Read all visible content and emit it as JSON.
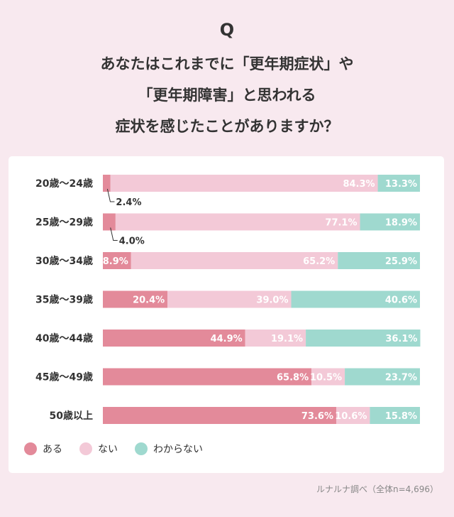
{
  "header": {
    "q_mark": "Q",
    "title_lines": [
      "あなたはこれまでに「更年期症状」や",
      "「更年期障害」と思われる",
      "症状を感じたことがありますか？"
    ]
  },
  "chart_data": {
    "type": "bar",
    "orientation": "horizontal",
    "stacked": true,
    "normalized": true,
    "categories": [
      "20歳〜24歳",
      "25歳〜29歳",
      "30歳〜34歳",
      "35歳〜39歳",
      "40歳〜44歳",
      "45歳〜49歳",
      "50歳以上"
    ],
    "series": [
      {
        "name": "ある",
        "color": "#e38a9a",
        "values": [
          2.4,
          4.0,
          8.9,
          20.4,
          44.9,
          65.8,
          73.6
        ],
        "labels": [
          "2.4%",
          "4.0%",
          "8.9%",
          "20.4%",
          "44.9%",
          "65.8%",
          "73.6%"
        ]
      },
      {
        "name": "ない",
        "color": "#f3c9d7",
        "values": [
          84.3,
          77.1,
          65.2,
          39.0,
          19.1,
          10.5,
          10.6
        ],
        "labels": [
          "84.3%",
          "77.1%",
          "65.2%",
          "39.0%",
          "19.1%",
          "10.5%",
          "10.6%"
        ]
      },
      {
        "name": "わからない",
        "color": "#9fd9cf",
        "values": [
          13.3,
          18.9,
          25.9,
          40.6,
          36.1,
          23.7,
          15.8
        ],
        "labels": [
          "13.3%",
          "18.9%",
          "25.9%",
          "40.6%",
          "36.1%",
          "23.7%",
          "15.8%"
        ]
      }
    ],
    "xlim": [
      0,
      100
    ],
    "legend": "bottom-left"
  },
  "source": "ルナルナ調べ（全体n=4,696）"
}
